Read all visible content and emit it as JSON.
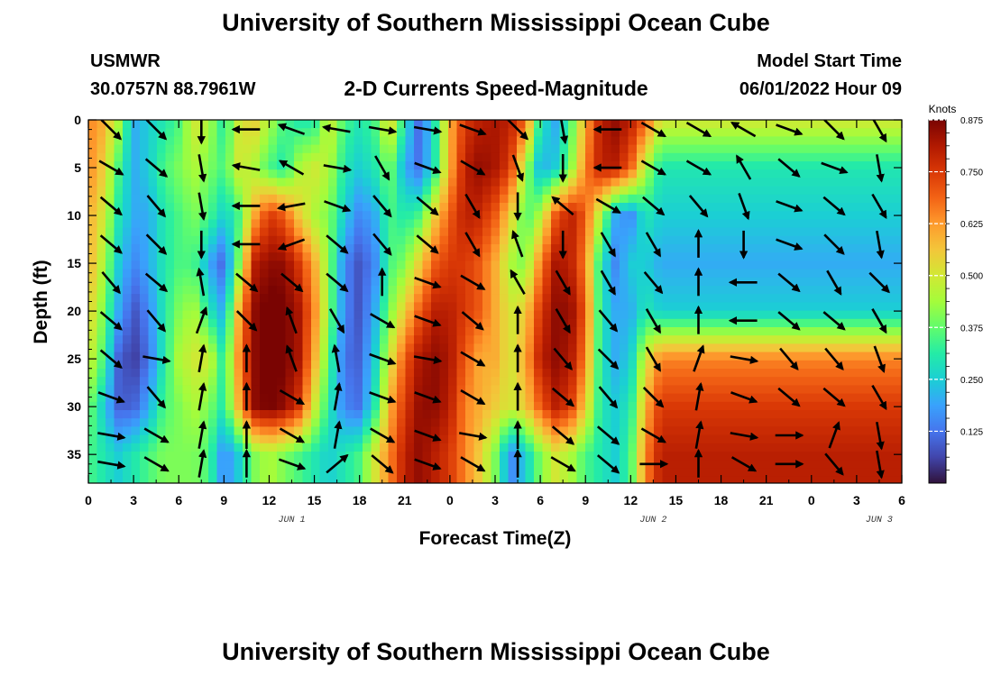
{
  "header": {
    "title": "University of Southern Mississippi Ocean Cube",
    "station_name": "USMWR",
    "station_coords": "30.0757N  88.7961W",
    "subtitle": "2-D Currents Speed-Magnitude",
    "model_start_label": "Model Start Time",
    "model_start_value": "06/01/2022 Hour 09"
  },
  "footer": {
    "title": "University of Southern Mississippi Ocean Cube"
  },
  "chart_data": {
    "type": "heatmap",
    "xlabel": "Forecast Time(Z)",
    "ylabel": "Depth (ft)",
    "x_tick_labels": [
      "0",
      "3",
      "6",
      "9",
      "12",
      "15",
      "18",
      "21",
      "0",
      "3",
      "6",
      "9",
      "12",
      "15",
      "18",
      "21",
      "0",
      "3",
      "6"
    ],
    "date_labels": [
      {
        "text": "JUN 1",
        "tick_index": 4.5
      },
      {
        "text": "JUN 2",
        "tick_index": 12.5
      },
      {
        "text": "JUN 3",
        "tick_index": 17.5
      }
    ],
    "y_tick_labels": [
      "0",
      "5",
      "10",
      "15",
      "20",
      "25",
      "30",
      "35"
    ],
    "y_tick_values": [
      0,
      5,
      10,
      15,
      20,
      25,
      30,
      35
    ],
    "ylim": [
      0,
      38
    ],
    "colorbar": {
      "label": "Knots",
      "tick_labels": [
        "0.125",
        "0.250",
        "0.375",
        "0.500",
        "0.625",
        "0.750",
        "0.875"
      ],
      "tick_values": [
        0.125,
        0.25,
        0.375,
        0.5,
        0.625,
        0.75,
        0.875
      ],
      "range": [
        0,
        0.875
      ],
      "colors": [
        "#30123b",
        "#4145ab",
        "#4675ed",
        "#39a2fc",
        "#1bcfd4",
        "#24eca6",
        "#61fc6c",
        "#a4fc3b",
        "#d1e834",
        "#f3c63a",
        "#fe9b2d",
        "#f36315",
        "#d93806",
        "#b11901",
        "#7a0402"
      ]
    },
    "speed_grid": {
      "columns_per_forecast_hour": 1,
      "depths_ft": [
        0,
        5,
        10,
        15,
        20,
        25,
        30,
        35
      ],
      "rows": [
        [
          0.65,
          0.6,
          0.45,
          0.2,
          0.25,
          0.3,
          0.35,
          0.5,
          0.45,
          0.3,
          0.5,
          0.55,
          0.45,
          0.35,
          0.3,
          0.3,
          0.5,
          0.35,
          0.3,
          0.35,
          0.55,
          0.3,
          0.1,
          0.3,
          0.6,
          0.75,
          0.8,
          0.82,
          0.8,
          0.7,
          0.3,
          0.2,
          0.35,
          0.6,
          0.8,
          0.85,
          0.8,
          0.7,
          0.5
        ],
        [
          0.65,
          0.55,
          0.35,
          0.2,
          0.25,
          0.35,
          0.4,
          0.45,
          0.4,
          0.35,
          0.5,
          0.45,
          0.35,
          0.3,
          0.45,
          0.5,
          0.45,
          0.3,
          0.25,
          0.3,
          0.4,
          0.2,
          0.12,
          0.3,
          0.6,
          0.8,
          0.85,
          0.82,
          0.75,
          0.45,
          0.2,
          0.25,
          0.4,
          0.65,
          0.8,
          0.8,
          0.7,
          0.45,
          0.3
        ],
        [
          0.6,
          0.5,
          0.3,
          0.2,
          0.2,
          0.3,
          0.35,
          0.4,
          0.35,
          0.25,
          0.35,
          0.6,
          0.75,
          0.7,
          0.55,
          0.45,
          0.4,
          0.25,
          0.15,
          0.2,
          0.35,
          0.3,
          0.35,
          0.55,
          0.7,
          0.8,
          0.78,
          0.7,
          0.55,
          0.35,
          0.45,
          0.7,
          0.8,
          0.7,
          0.45,
          0.2,
          0.15,
          0.3,
          0.25
        ],
        [
          0.6,
          0.45,
          0.25,
          0.15,
          0.2,
          0.3,
          0.35,
          0.35,
          0.2,
          0.1,
          0.4,
          0.8,
          0.85,
          0.85,
          0.75,
          0.6,
          0.4,
          0.15,
          0.08,
          0.15,
          0.35,
          0.4,
          0.55,
          0.7,
          0.75,
          0.75,
          0.7,
          0.6,
          0.45,
          0.4,
          0.65,
          0.82,
          0.8,
          0.65,
          0.3,
          0.15,
          0.25,
          0.25,
          0.2
        ],
        [
          0.55,
          0.4,
          0.2,
          0.08,
          0.15,
          0.3,
          0.4,
          0.45,
          0.3,
          0.2,
          0.6,
          0.85,
          0.9,
          0.88,
          0.82,
          0.65,
          0.4,
          0.15,
          0.08,
          0.2,
          0.4,
          0.55,
          0.7,
          0.8,
          0.8,
          0.75,
          0.7,
          0.6,
          0.5,
          0.55,
          0.75,
          0.85,
          0.85,
          0.7,
          0.3,
          0.2,
          0.2,
          0.3,
          0.25
        ],
        [
          0.5,
          0.35,
          0.1,
          0.05,
          0.12,
          0.3,
          0.45,
          0.5,
          0.5,
          0.3,
          0.65,
          0.85,
          0.9,
          0.88,
          0.82,
          0.6,
          0.35,
          0.12,
          0.1,
          0.25,
          0.5,
          0.7,
          0.82,
          0.85,
          0.82,
          0.7,
          0.6,
          0.6,
          0.5,
          0.6,
          0.8,
          0.85,
          0.82,
          0.65,
          0.3,
          0.2,
          0.25,
          0.5,
          0.65
        ],
        [
          0.4,
          0.25,
          0.1,
          0.1,
          0.2,
          0.35,
          0.4,
          0.45,
          0.4,
          0.3,
          0.6,
          0.85,
          0.88,
          0.85,
          0.75,
          0.5,
          0.3,
          0.15,
          0.12,
          0.3,
          0.6,
          0.75,
          0.85,
          0.85,
          0.8,
          0.65,
          0.6,
          0.55,
          0.5,
          0.55,
          0.7,
          0.8,
          0.75,
          0.55,
          0.3,
          0.25,
          0.3,
          0.6,
          0.75
        ],
        [
          0.35,
          0.3,
          0.25,
          0.3,
          0.35,
          0.4,
          0.4,
          0.4,
          0.35,
          0.15,
          0.25,
          0.4,
          0.45,
          0.4,
          0.35,
          0.3,
          0.25,
          0.3,
          0.35,
          0.5,
          0.65,
          0.8,
          0.85,
          0.8,
          0.75,
          0.65,
          0.55,
          0.4,
          0.15,
          0.25,
          0.4,
          0.5,
          0.45,
          0.35,
          0.3,
          0.25,
          0.35,
          0.65,
          0.8
        ]
      ]
    },
    "vectors": {
      "x_tick_indices": [
        0.5,
        1.5,
        2.5,
        3.5,
        4.5,
        5.5,
        6.5,
        7.5,
        8.5,
        9.5,
        10.5,
        11.5,
        12.5,
        13.5,
        14.5,
        15.5,
        16.5,
        17.5
      ],
      "depths_ft": [
        1,
        5,
        9,
        13,
        17,
        21,
        25,
        29,
        33,
        36
      ],
      "directions_deg": [
        [
          -45,
          -45,
          -90,
          180,
          160,
          170,
          -10,
          -10,
          -20,
          -45,
          -80,
          180,
          -30,
          -30,
          150,
          -20,
          -45,
          -60
        ],
        [
          -30,
          -40,
          -80,
          170,
          150,
          -10,
          -60,
          -20,
          -30,
          -70,
          -90,
          180,
          -30,
          -30,
          120,
          -40,
          -20,
          -80
        ],
        [
          -40,
          -50,
          -80,
          -180,
          -170,
          -20,
          -50,
          -40,
          -60,
          -90,
          140,
          -30,
          -40,
          -50,
          -70,
          -20,
          -40,
          -60
        ],
        [
          -40,
          -45,
          -90,
          -180,
          -160,
          -40,
          -50,
          -40,
          -60,
          110,
          -90,
          -60,
          -60,
          90,
          -90,
          -20,
          -45,
          -80
        ],
        [
          -50,
          -40,
          100,
          -40,
          -40,
          -40,
          90,
          -20,
          -30,
          120,
          -60,
          -60,
          -50,
          90,
          -180,
          -40,
          -60,
          -45
        ],
        [
          -40,
          -50,
          70,
          -45,
          110,
          -60,
          -30,
          -20,
          -40,
          90,
          -60,
          -50,
          -60,
          90,
          -180,
          -40,
          -40,
          -60
        ],
        [
          -40,
          -10,
          80,
          90,
          110,
          100,
          -20,
          -10,
          -30,
          90,
          -50,
          -45,
          -60,
          70,
          -10,
          -50,
          -50,
          -70
        ],
        [
          -20,
          -50,
          80,
          90,
          -30,
          80,
          -20,
          -20,
          -30,
          90,
          -40,
          -50,
          -45,
          80,
          -20,
          -40,
          -40,
          -60
        ],
        [
          -10,
          -30,
          80,
          90,
          -30,
          80,
          -30,
          -20,
          -10,
          90,
          -40,
          -40,
          -30,
          80,
          -10,
          0,
          70,
          -80
        ],
        [
          -10,
          -30,
          80,
          90,
          -20,
          40,
          -40,
          -20,
          -30,
          90,
          -30,
          -40,
          0,
          90,
          -30,
          0,
          -50,
          -80
        ]
      ]
    }
  }
}
